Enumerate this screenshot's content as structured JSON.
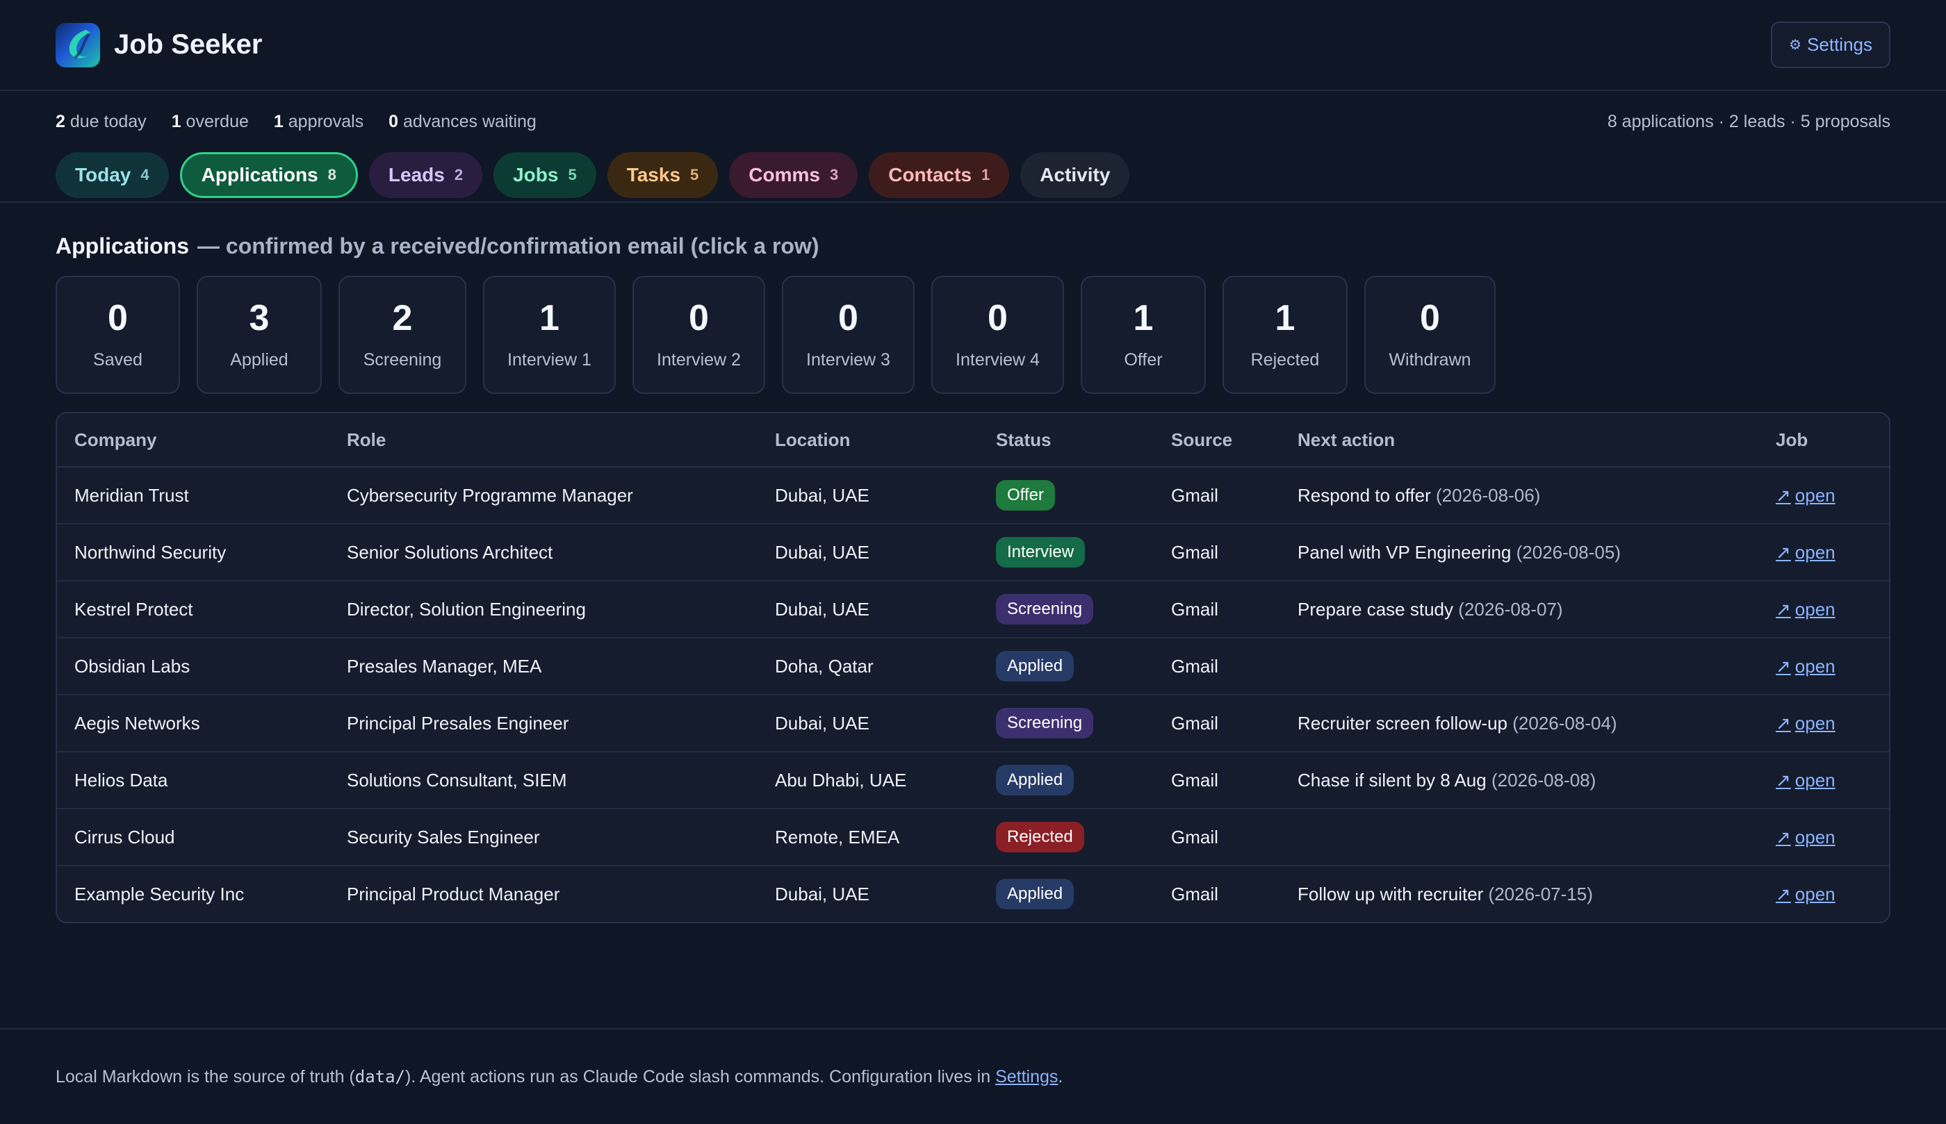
{
  "app": {
    "title": "Job Seeker",
    "settings_label": "Settings",
    "settings_icon": "gear-icon",
    "logo_icon": "app-logo"
  },
  "summary": {
    "due_today_count": "2",
    "due_today_label": "due today",
    "overdue_count": "1",
    "overdue_label": "overdue",
    "approvals_count": "1",
    "approvals_label": "approvals",
    "advances_count": "0",
    "advances_label": "advances waiting",
    "totals": "8 applications · 2 leads · 5 proposals"
  },
  "tabs": [
    {
      "label": "Today",
      "count": "4"
    },
    {
      "label": "Applications",
      "count": "8"
    },
    {
      "label": "Leads",
      "count": "2"
    },
    {
      "label": "Jobs",
      "count": "5"
    },
    {
      "label": "Tasks",
      "count": "5"
    },
    {
      "label": "Comms",
      "count": "3"
    },
    {
      "label": "Contacts",
      "count": "1"
    },
    {
      "label": "Activity",
      "count": ""
    }
  ],
  "section": {
    "title": "Applications",
    "subtitle": "— confirmed by a received/confirmation email (click a row)"
  },
  "stats": [
    {
      "value": "0",
      "label": "Saved"
    },
    {
      "value": "3",
      "label": "Applied"
    },
    {
      "value": "2",
      "label": "Screening"
    },
    {
      "value": "1",
      "label": "Interview 1"
    },
    {
      "value": "0",
      "label": "Interview 2"
    },
    {
      "value": "0",
      "label": "Interview 3"
    },
    {
      "value": "0",
      "label": "Interview 4"
    },
    {
      "value": "1",
      "label": "Offer"
    },
    {
      "value": "1",
      "label": "Rejected"
    },
    {
      "value": "0",
      "label": "Withdrawn"
    }
  ],
  "table": {
    "headers": [
      "Company",
      "Role",
      "Location",
      "Status",
      "Source",
      "Next action",
      "Job"
    ],
    "status_colors": {
      "Offer": "#1f7a3d",
      "Interview": "#146b47",
      "Screening": "#3b2f6e",
      "Applied": "#263a66",
      "Rejected": "#8a1f26"
    },
    "rows": [
      {
        "company": "Meridian Trust",
        "role": "Cybersecurity Programme Manager",
        "location": "Dubai, UAE",
        "status": "Offer",
        "source": "Gmail",
        "action": "Respond to offer",
        "date": "(2026-08-06)",
        "job": "open"
      },
      {
        "company": "Northwind Security",
        "role": "Senior Solutions Architect",
        "location": "Dubai, UAE",
        "status": "Interview",
        "source": "Gmail",
        "action": "Panel with VP Engineering",
        "date": "(2026-08-05)",
        "job": "open"
      },
      {
        "company": "Kestrel Protect",
        "role": "Director, Solution Engineering",
        "location": "Dubai, UAE",
        "status": "Screening",
        "source": "Gmail",
        "action": "Prepare case study",
        "date": "(2026-08-07)",
        "job": "open"
      },
      {
        "company": "Obsidian Labs",
        "role": "Presales Manager, MEA",
        "location": "Doha, Qatar",
        "status": "Applied",
        "source": "Gmail",
        "action": "",
        "date": "",
        "job": "open"
      },
      {
        "company": "Aegis Networks",
        "role": "Principal Presales Engineer",
        "location": "Dubai, UAE",
        "status": "Screening",
        "source": "Gmail",
        "action": "Recruiter screen follow-up",
        "date": "(2026-08-04)",
        "job": "open"
      },
      {
        "company": "Helios Data",
        "role": "Solutions Consultant, SIEM",
        "location": "Abu Dhabi, UAE",
        "status": "Applied",
        "source": "Gmail",
        "action": "Chase if silent by 8 Aug",
        "date": "(2026-08-08)",
        "job": "open"
      },
      {
        "company": "Cirrus Cloud",
        "role": "Security Sales Engineer",
        "location": "Remote, EMEA",
        "status": "Rejected",
        "source": "Gmail",
        "action": "",
        "date": "",
        "job": "open"
      },
      {
        "company": "Example Security Inc",
        "role": "Principal Product Manager",
        "location": "Dubai, UAE",
        "status": "Applied",
        "source": "Gmail",
        "action": "Follow up with recruiter",
        "date": "(2026-07-15)",
        "job": "open"
      }
    ]
  },
  "footer": {
    "text1": "Local Markdown is the source of truth (",
    "code": "data/",
    "text2": "). Agent actions run as Claude Code slash commands. Configuration lives in ",
    "link": "Settings",
    "text3": "."
  }
}
